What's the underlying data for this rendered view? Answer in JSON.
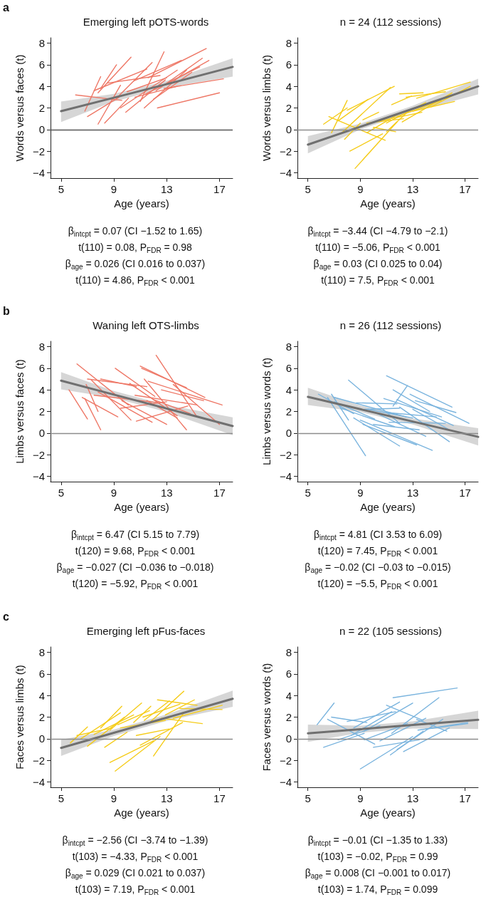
{
  "chart_data": [
    {
      "type": "line",
      "title": "Emerging left pOTS-words",
      "xlabel": "Age (years)",
      "ylabel": "Words versus faces (t)",
      "xlim": [
        4.2,
        18
      ],
      "xticks": [
        5,
        9,
        13,
        17
      ],
      "ylim": [
        -4.5,
        8.5
      ],
      "yticks": [
        -4,
        -2,
        0,
        2,
        4,
        6,
        8
      ],
      "ref_lines": [
        {
          "axis": "y",
          "value": 0,
          "color": "#555555"
        }
      ],
      "annotations": [
        "a",
        "β$_{intcpt}$ = 0.07 (CI −1.52 to 1.65)",
        "t(110) = 0.08, P$_{FDR}$ = 0.98",
        "β$_{age}$ = 0.026 (CI 0.016 to 0.037)",
        "t(110) = 4.86, P$_{FDR}$ < 0.001"
      ],
      "series": [
        {
          "color": "#ee7766",
          "x": [
            6.1,
            9.6
          ],
          "values": [
            3.2,
            2.7
          ]
        },
        {
          "color": "#ee7766",
          "x": [
            6.8,
            8.0
          ],
          "values": [
            1.7,
            4.9
          ]
        },
        {
          "color": "#ee7766",
          "x": [
            7.0,
            9.4
          ],
          "values": [
            1.2,
            3.0
          ]
        },
        {
          "color": "#ee7766",
          "x": [
            7.5,
            11.5
          ],
          "values": [
            3.6,
            5.6
          ]
        },
        {
          "color": "#ee7766",
          "x": [
            7.8,
            9.5
          ],
          "values": [
            0.5,
            4.1
          ]
        },
        {
          "color": "#ee7766",
          "x": [
            8.3,
            10.1
          ],
          "values": [
            0.6,
            2.9
          ]
        },
        {
          "color": "#ee7766",
          "x": [
            8.0,
            9.2
          ],
          "values": [
            3.8,
            6.0
          ]
        },
        {
          "color": "#ee7766",
          "x": [
            7.8,
            10.3
          ],
          "values": [
            3.4,
            6.7
          ]
        },
        {
          "color": "#ee7766",
          "x": [
            9.2,
            11.9
          ],
          "values": [
            2.9,
            6.2
          ]
        },
        {
          "color": "#ee7766",
          "x": [
            9.5,
            13.8
          ],
          "values": [
            2.0,
            5.5
          ]
        },
        {
          "color": "#ee7766",
          "x": [
            9.9,
            12.9
          ],
          "values": [
            1.6,
            4.6
          ]
        },
        {
          "color": "#ee7766",
          "x": [
            10.0,
            13.0
          ],
          "values": [
            3.5,
            4.8
          ]
        },
        {
          "color": "#ee7766",
          "x": [
            10.5,
            14.1
          ],
          "values": [
            4.5,
            6.4
          ]
        },
        {
          "color": "#ee7766",
          "x": [
            11.0,
            12.8
          ],
          "values": [
            2.6,
            7.2
          ]
        },
        {
          "color": "#ee7766",
          "x": [
            11.3,
            14.5
          ],
          "values": [
            2.0,
            5.5
          ]
        },
        {
          "color": "#ee7766",
          "x": [
            11.4,
            15.5
          ],
          "values": [
            3.3,
            5.8
          ]
        },
        {
          "color": "#ee7766",
          "x": [
            11.6,
            16.0
          ],
          "values": [
            4.8,
            7.5
          ]
        },
        {
          "color": "#ee7766",
          "x": [
            12.0,
            14.9
          ],
          "values": [
            2.8,
            5.3
          ]
        },
        {
          "color": "#ee7766",
          "x": [
            12.2,
            15.7
          ],
          "values": [
            3.6,
            6.6
          ]
        },
        {
          "color": "#ee7766",
          "x": [
            12.3,
            17.0
          ],
          "values": [
            2.0,
            3.4
          ]
        },
        {
          "color": "#ee7766",
          "x": [
            12.8,
            17.3
          ],
          "values": [
            3.8,
            4.7
          ]
        },
        {
          "color": "#ee7766",
          "x": [
            13.0,
            16.2
          ],
          "values": [
            4.2,
            6.4
          ]
        },
        {
          "color": "#ee7766",
          "x": [
            10.6,
            13.8
          ],
          "values": [
            3.0,
            4.0
          ]
        },
        {
          "color": "#ee7766",
          "x": [
            8.5,
            12.5
          ],
          "values": [
            4.3,
            5.0
          ]
        },
        {
          "color": "#707070",
          "x": [
            5,
            9,
            13,
            18
          ],
          "values": [
            1.7,
            2.95,
            4.2,
            5.8
          ],
          "lower": [
            0.7,
            2.6,
            3.9,
            4.9
          ],
          "upper": [
            2.6,
            3.3,
            4.5,
            6.6
          ]
        }
      ]
    },
    {
      "type": "line",
      "title": "n = 24 (112 sessions)",
      "xlabel": "Age (years)",
      "ylabel": "Words versus limbs (t)",
      "xlim": [
        4.2,
        18
      ],
      "xticks": [
        5,
        9,
        13,
        17
      ],
      "ylim": [
        -4.5,
        8.5
      ],
      "yticks": [
        -4,
        -2,
        0,
        2,
        4,
        6,
        8
      ],
      "ref_lines": [
        {
          "axis": "y",
          "value": 0,
          "color": "#8c8c8c"
        }
      ],
      "annotations": [
        "β$_{intcpt}$ = −3.44 (CI −4.79 to −2.1)",
        "t(110) = −5.06, P$_{FDR}$ < 0.001",
        "β$_{age}$ = 0.03 (CI 0.025 to 0.04)",
        "t(110) = 7.5, P$_{FDR}$ < 0.001"
      ],
      "series": [
        {
          "color": "#f5cc1a",
          "x": [
            6.2,
            8.0
          ],
          "values": [
            0.5,
            2.0
          ]
        },
        {
          "color": "#f5cc1a",
          "x": [
            6.6,
            10.9
          ],
          "values": [
            1.2,
            -1.0
          ]
        },
        {
          "color": "#f5cc1a",
          "x": [
            6.8,
            8.0
          ],
          "values": [
            -0.3,
            2.7
          ]
        },
        {
          "color": "#f5cc1a",
          "x": [
            7.3,
            9.6
          ],
          "values": [
            0.8,
            2.8
          ]
        },
        {
          "color": "#f5cc1a",
          "x": [
            7.5,
            11.3
          ],
          "values": [
            -0.4,
            3.9
          ]
        },
        {
          "color": "#f5cc1a",
          "x": [
            7.8,
            9.0
          ],
          "values": [
            -0.9,
            0.6
          ]
        },
        {
          "color": "#f5cc1a",
          "x": [
            8.0,
            11.6
          ],
          "values": [
            1.8,
            4.0
          ]
        },
        {
          "color": "#f5cc1a",
          "x": [
            8.2,
            10.7
          ],
          "values": [
            -2.0,
            -0.4
          ]
        },
        {
          "color": "#f5cc1a",
          "x": [
            8.6,
            11.8
          ],
          "values": [
            -3.6,
            0.7
          ]
        },
        {
          "color": "#f5cc1a",
          "x": [
            9.2,
            10.4
          ],
          "values": [
            0.9,
            1.6
          ]
        },
        {
          "color": "#f5cc1a",
          "x": [
            9.5,
            12.0
          ],
          "values": [
            -0.3,
            1.5
          ]
        },
        {
          "color": "#f5cc1a",
          "x": [
            9.5,
            12.3
          ],
          "values": [
            0.6,
            1.0
          ]
        },
        {
          "color": "#f5cc1a",
          "x": [
            10.0,
            11.7
          ],
          "values": [
            0.2,
            -0.2
          ]
        },
        {
          "color": "#f5cc1a",
          "x": [
            10.5,
            13.7
          ],
          "values": [
            0.8,
            1.6
          ]
        },
        {
          "color": "#f5cc1a",
          "x": [
            11.0,
            12.5
          ],
          "values": [
            -0.2,
            1.5
          ]
        },
        {
          "color": "#f5cc1a",
          "x": [
            11.0,
            14.0
          ],
          "values": [
            0.6,
            2.5
          ]
        },
        {
          "color": "#f5cc1a",
          "x": [
            11.4,
            12.9
          ],
          "values": [
            2.3,
            3.1
          ]
        },
        {
          "color": "#f5cc1a",
          "x": [
            11.8,
            15.2
          ],
          "values": [
            1.2,
            2.7
          ]
        },
        {
          "color": "#f5cc1a",
          "x": [
            12.0,
            13.8
          ],
          "values": [
            3.3,
            3.4
          ]
        },
        {
          "color": "#f5cc1a",
          "x": [
            12.5,
            15.5
          ],
          "values": [
            3.0,
            3.5
          ]
        },
        {
          "color": "#f5cc1a",
          "x": [
            12.2,
            16.0
          ],
          "values": [
            0.7,
            3.4
          ]
        },
        {
          "color": "#f5cc1a",
          "x": [
            13.0,
            16.2
          ],
          "values": [
            1.7,
            2.6
          ]
        },
        {
          "color": "#f5cc1a",
          "x": [
            13.3,
            17.4
          ],
          "values": [
            2.9,
            4.4
          ]
        },
        {
          "color": "#f5cc1a",
          "x": [
            14.4,
            17.4
          ],
          "values": [
            2.1,
            4.0
          ]
        },
        {
          "color": "#707070",
          "x": [
            5,
            9,
            13,
            18
          ],
          "values": [
            -1.4,
            0.26,
            1.92,
            4.0
          ],
          "lower": [
            -2.2,
            0.0,
            1.65,
            3.25
          ],
          "upper": [
            -0.6,
            0.55,
            2.2,
            4.7
          ]
        }
      ]
    },
    {
      "type": "line",
      "title": "Waning left OTS-limbs",
      "xlabel": "Age (years)",
      "ylabel": "Limbs versus faces (t)",
      "xlim": [
        4.2,
        18
      ],
      "xticks": [
        5,
        9,
        13,
        17
      ],
      "ylim": [
        -4.5,
        8.5
      ],
      "yticks": [
        -4,
        -2,
        0,
        2,
        4,
        6,
        8
      ],
      "ref_lines": [
        {
          "axis": "y",
          "value": 0,
          "color": "#8c8c8c"
        }
      ],
      "annotations": [
        "b",
        "β$_{intcpt}$ = 6.47 (CI 5.15 to 7.79)",
        "t(120) = 9.68, P$_{FDR}$ < 0.001",
        "β$_{age}$ = −0.027 (CI −0.036 to −0.018)",
        "t(120) = −5.92, P$_{FDR}$ < 0.001"
      ],
      "series": [
        {
          "color": "#ee7766",
          "x": [
            5.6,
            7.0
          ],
          "values": [
            4.0,
            1.3
          ]
        },
        {
          "color": "#ee7766",
          "x": [
            6.2,
            10.1
          ],
          "values": [
            6.4,
            2.6
          ]
        },
        {
          "color": "#ee7766",
          "x": [
            6.6,
            9.3
          ],
          "values": [
            3.3,
            1.5
          ]
        },
        {
          "color": "#ee7766",
          "x": [
            6.8,
            8.0
          ],
          "values": [
            3.2,
            0.3
          ]
        },
        {
          "color": "#ee7766",
          "x": [
            6.9,
            7.8
          ],
          "values": [
            4.5,
            2.0
          ]
        },
        {
          "color": "#ee7766",
          "x": [
            7.0,
            11.5
          ],
          "values": [
            5.0,
            4.3
          ]
        },
        {
          "color": "#ee7766",
          "x": [
            7.3,
            10.3
          ],
          "values": [
            4.9,
            1.2
          ]
        },
        {
          "color": "#ee7766",
          "x": [
            7.5,
            12.5
          ],
          "values": [
            3.5,
            2.8
          ]
        },
        {
          "color": "#ee7766",
          "x": [
            7.8,
            11.9
          ],
          "values": [
            3.8,
            1.0
          ]
        },
        {
          "color": "#ee7766",
          "x": [
            9.1,
            12.1
          ],
          "values": [
            6.0,
            3.4
          ]
        },
        {
          "color": "#ee7766",
          "x": [
            9.6,
            13.0
          ],
          "values": [
            3.0,
            0.8
          ]
        },
        {
          "color": "#ee7766",
          "x": [
            10.2,
            13.8
          ],
          "values": [
            4.6,
            1.6
          ]
        },
        {
          "color": "#ee7766",
          "x": [
            10.6,
            15.3
          ],
          "values": [
            3.5,
            2.6
          ]
        },
        {
          "color": "#ee7766",
          "x": [
            10.7,
            14.6
          ],
          "values": [
            1.1,
            2.5
          ]
        },
        {
          "color": "#ee7766",
          "x": [
            11.0,
            15.9
          ],
          "values": [
            6.2,
            3.3
          ]
        },
        {
          "color": "#ee7766",
          "x": [
            11.1,
            14.5
          ],
          "values": [
            6.0,
            4.2
          ]
        },
        {
          "color": "#ee7766",
          "x": [
            11.5,
            13.8
          ],
          "values": [
            3.0,
            1.4
          ]
        },
        {
          "color": "#ee7766",
          "x": [
            11.6,
            17.2
          ],
          "values": [
            4.8,
            2.6
          ]
        },
        {
          "color": "#ee7766",
          "x": [
            11.3,
            14.5
          ],
          "values": [
            5.0,
            0.3
          ]
        },
        {
          "color": "#ee7766",
          "x": [
            12.0,
            14.8
          ],
          "values": [
            3.1,
            1.8
          ]
        },
        {
          "color": "#ee7766",
          "x": [
            12.6,
            15.8
          ],
          "values": [
            4.0,
            3.0
          ]
        },
        {
          "color": "#ee7766",
          "x": [
            12.2,
            15.3
          ],
          "values": [
            7.2,
            1.5
          ]
        },
        {
          "color": "#ee7766",
          "x": [
            13.5,
            17.0
          ],
          "values": [
            4.5,
            0.8
          ]
        },
        {
          "color": "#ee7766",
          "x": [
            9.5,
            13.0
          ],
          "values": [
            2.3,
            2.9
          ]
        },
        {
          "color": "#ee7766",
          "x": [
            8.0,
            10.7
          ],
          "values": [
            5.0,
            4.3
          ]
        },
        {
          "color": "#707070",
          "x": [
            5,
            9,
            13,
            18
          ],
          "values": [
            4.85,
            3.56,
            2.27,
            0.65
          ],
          "lower": [
            4.05,
            3.25,
            1.95,
            -0.2
          ],
          "upper": [
            5.65,
            3.9,
            2.6,
            1.45
          ]
        }
      ]
    },
    {
      "type": "line",
      "title": "n = 26 (112 sessions)",
      "xlabel": "Age (years)",
      "ylabel": "Limbs versus words (t)",
      "xlim": [
        4.2,
        18
      ],
      "xticks": [
        5,
        9,
        13,
        17
      ],
      "ylim": [
        -4.5,
        8.5
      ],
      "yticks": [
        -4,
        -2,
        0,
        2,
        4,
        6,
        8
      ],
      "ref_lines": [
        {
          "axis": "y",
          "value": 0,
          "color": "#8c8c8c"
        }
      ],
      "annotations": [
        "β$_{intcpt}$ = 4.81 (CI 3.53 to 6.09)",
        "t(120) = 7.45, P$_{FDR}$ < 0.001",
        "β$_{age}$ = −0.02 (CI −0.03 to −0.015)",
        "t(120) = −5.5, P$_{FDR}$ < 0.001"
      ],
      "series": [
        {
          "color": "#7ab4de",
          "x": [
            5.8,
            8.5
          ],
          "values": [
            3.6,
            1.8
          ]
        },
        {
          "color": "#7ab4de",
          "x": [
            6.5,
            9.4
          ],
          "values": [
            3.3,
            -2.1
          ]
        },
        {
          "color": "#7ab4de",
          "x": [
            6.8,
            8.1
          ],
          "values": [
            3.6,
            1.2
          ]
        },
        {
          "color": "#7ab4de",
          "x": [
            7.0,
            10.1
          ],
          "values": [
            2.9,
            1.3
          ]
        },
        {
          "color": "#7ab4de",
          "x": [
            7.0,
            12.5
          ],
          "values": [
            3.3,
            1.5
          ]
        },
        {
          "color": "#7ab4de",
          "x": [
            7.5,
            11.6
          ],
          "values": [
            2.3,
            0.6
          ]
        },
        {
          "color": "#7ab4de",
          "x": [
            8.1,
            12.0
          ],
          "values": [
            4.9,
            0.9
          ]
        },
        {
          "color": "#7ab4de",
          "x": [
            8.5,
            12.0
          ],
          "values": [
            1.4,
            -1.2
          ]
        },
        {
          "color": "#7ab4de",
          "x": [
            8.7,
            11.8
          ],
          "values": [
            2.8,
            2.7
          ]
        },
        {
          "color": "#7ab4de",
          "x": [
            9.0,
            14.5
          ],
          "values": [
            1.2,
            -1.6
          ]
        },
        {
          "color": "#7ab4de",
          "x": [
            9.2,
            13.3
          ],
          "values": [
            0.8,
            -1.1
          ]
        },
        {
          "color": "#7ab4de",
          "x": [
            9.6,
            13.0
          ],
          "values": [
            2.2,
            1.4
          ]
        },
        {
          "color": "#7ab4de",
          "x": [
            10.8,
            15.2
          ],
          "values": [
            3.2,
            1.5
          ]
        },
        {
          "color": "#7ab4de",
          "x": [
            11.0,
            14.8
          ],
          "values": [
            1.9,
            1.5
          ]
        },
        {
          "color": "#7ab4de",
          "x": [
            11.2,
            15.5
          ],
          "values": [
            1.0,
            0.9
          ]
        },
        {
          "color": "#7ab4de",
          "x": [
            11.5,
            12.6
          ],
          "values": [
            2.5,
            4.4
          ]
        },
        {
          "color": "#7ab4de",
          "x": [
            11.5,
            14.3
          ],
          "values": [
            4.0,
            2.0
          ]
        },
        {
          "color": "#7ab4de",
          "x": [
            11.8,
            16.1
          ],
          "values": [
            3.1,
            0.7
          ]
        },
        {
          "color": "#7ab4de",
          "x": [
            11.0,
            16.0
          ],
          "values": [
            5.3,
            2.4
          ]
        },
        {
          "color": "#7ab4de",
          "x": [
            12.8,
            17.3
          ],
          "values": [
            3.6,
            0.9
          ]
        },
        {
          "color": "#7ab4de",
          "x": [
            13.2,
            16.3
          ],
          "values": [
            3.0,
            1.9
          ]
        },
        {
          "color": "#7ab4de",
          "x": [
            12.0,
            15.8
          ],
          "values": [
            2.4,
            -0.8
          ]
        },
        {
          "color": "#7ab4de",
          "x": [
            13.0,
            15.8
          ],
          "values": [
            2.2,
            0.3
          ]
        },
        {
          "color": "#7ab4de",
          "x": [
            10.0,
            13.5
          ],
          "values": [
            0.8,
            0.3
          ]
        },
        {
          "color": "#7ab4de",
          "x": [
            10.3,
            14.0
          ],
          "values": [
            1.8,
            -0.3
          ]
        },
        {
          "color": "#7ab4de",
          "x": [
            9.3,
            12.0
          ],
          "values": [
            2.2,
            2.3
          ]
        },
        {
          "color": "#707070",
          "x": [
            5,
            9,
            13,
            18
          ],
          "values": [
            3.35,
            2.21,
            1.07,
            -0.35
          ],
          "lower": [
            2.6,
            1.95,
            0.8,
            -1.15
          ],
          "upper": [
            4.2,
            2.55,
            1.35,
            0.45
          ]
        }
      ]
    },
    {
      "type": "line",
      "title": "Emerging left pFus-faces",
      "xlabel": "Age (years)",
      "ylabel": "Faces versus limbs (t)",
      "xlim": [
        4.2,
        18
      ],
      "xticks": [
        5,
        9,
        13,
        17
      ],
      "ylim": [
        -4.5,
        8.5
      ],
      "yticks": [
        -4,
        -2,
        0,
        2,
        4,
        6,
        8
      ],
      "ref_lines": [
        {
          "axis": "y",
          "value": 0,
          "color": "#8c8c8c"
        }
      ],
      "annotations": [
        "c",
        "β$_{intcpt}$ = −2.56 (CI −3.74 to −1.39)",
        "t(103) = −4.33, P$_{FDR}$ < 0.001",
        "β$_{age}$ = 0.029 (CI 0.021 to 0.037)",
        "t(103) = 7.19, P$_{FDR}$ < 0.001"
      ],
      "series": [
        {
          "color": "#f5cc1a",
          "x": [
            5.7,
            7.0
          ],
          "values": [
            -0.4,
            1.1
          ]
        },
        {
          "color": "#f5cc1a",
          "x": [
            6.2,
            8.9
          ],
          "values": [
            0.3,
            1.0
          ]
        },
        {
          "color": "#f5cc1a",
          "x": [
            6.5,
            9.5
          ],
          "values": [
            0.0,
            2.4
          ]
        },
        {
          "color": "#f5cc1a",
          "x": [
            7.0,
            9.8
          ],
          "values": [
            -0.7,
            2.0
          ]
        },
        {
          "color": "#f5cc1a",
          "x": [
            7.5,
            10.5
          ],
          "values": [
            0.4,
            2.2
          ]
        },
        {
          "color": "#f5cc1a",
          "x": [
            8.0,
            9.6
          ],
          "values": [
            1.0,
            3.0
          ]
        },
        {
          "color": "#f5cc1a",
          "x": [
            8.3,
            10.0
          ],
          "values": [
            -0.8,
            0.6
          ]
        },
        {
          "color": "#f5cc1a",
          "x": [
            8.7,
            11.1
          ],
          "values": [
            0.8,
            3.3
          ]
        },
        {
          "color": "#f5cc1a",
          "x": [
            8.7,
            12.0
          ],
          "values": [
            -2.2,
            -0.2
          ]
        },
        {
          "color": "#f5cc1a",
          "x": [
            9.1,
            12.5
          ],
          "values": [
            -3.0,
            0.2
          ]
        },
        {
          "color": "#f5cc1a",
          "x": [
            9.3,
            11.7
          ],
          "values": [
            1.3,
            2.6
          ]
        },
        {
          "color": "#f5cc1a",
          "x": [
            9.5,
            12.9
          ],
          "values": [
            1.0,
            1.7
          ]
        },
        {
          "color": "#f5cc1a",
          "x": [
            10.5,
            11.8
          ],
          "values": [
            1.5,
            3.0
          ]
        },
        {
          "color": "#f5cc1a",
          "x": [
            10.7,
            13.2
          ],
          "values": [
            0.3,
            0.9
          ]
        },
        {
          "color": "#f5cc1a",
          "x": [
            11.0,
            14.2
          ],
          "values": [
            -0.6,
            1.5
          ]
        },
        {
          "color": "#f5cc1a",
          "x": [
            11.2,
            14.0
          ],
          "values": [
            2.0,
            3.2
          ]
        },
        {
          "color": "#f5cc1a",
          "x": [
            11.3,
            13.2
          ],
          "values": [
            1.7,
            3.5
          ]
        },
        {
          "color": "#f5cc1a",
          "x": [
            11.8,
            14.3
          ],
          "values": [
            1.6,
            4.4
          ]
        },
        {
          "color": "#f5cc1a",
          "x": [
            12.0,
            14.3
          ],
          "values": [
            -1.6,
            2.4
          ]
        },
        {
          "color": "#f5cc1a",
          "x": [
            12.3,
            15.3
          ],
          "values": [
            3.6,
            3.1
          ]
        },
        {
          "color": "#f5cc1a",
          "x": [
            12.6,
            15.7
          ],
          "values": [
            1.9,
            1.4
          ]
        },
        {
          "color": "#f5cc1a",
          "x": [
            12.9,
            15.1
          ],
          "values": [
            2.2,
            3.6
          ]
        },
        {
          "color": "#f5cc1a",
          "x": [
            13.5,
            17.2
          ],
          "values": [
            1.9,
            3.1
          ]
        },
        {
          "color": "#f5cc1a",
          "x": [
            14.0,
            17.2
          ],
          "values": [
            2.8,
            2.7
          ]
        },
        {
          "color": "#707070",
          "x": [
            5,
            9,
            13,
            18
          ],
          "values": [
            -0.85,
            0.55,
            1.95,
            3.7
          ],
          "lower": [
            -1.6,
            0.25,
            1.65,
            2.95
          ],
          "upper": [
            -0.1,
            0.85,
            2.25,
            4.45
          ]
        }
      ]
    },
    {
      "type": "line",
      "title": "n = 22 (105 sessions)",
      "xlabel": "Age (years)",
      "ylabel": "Faces versus words (t)",
      "xlim": [
        4.2,
        18
      ],
      "xticks": [
        5,
        9,
        13,
        17
      ],
      "ylim": [
        -4.5,
        8.5
      ],
      "yticks": [
        -4,
        -2,
        0,
        2,
        4,
        6,
        8
      ],
      "ref_lines": [
        {
          "axis": "y",
          "value": 0,
          "color": "#8c8c8c"
        }
      ],
      "annotations": [
        "β$_{intcpt}$ = −0.01 (CI −1.35 to 1.33)",
        "t(103) = −0.02, P$_{FDR}$ = 0.99",
        "β$_{age}$ = 0.008 (CI −0.001 to 0.017)",
        "t(103) = 1.74, P$_{FDR}$ = 0.099"
      ],
      "series": [
        {
          "color": "#7ab4de",
          "x": [
            5.7,
            7.0
          ],
          "values": [
            1.3,
            3.3
          ]
        },
        {
          "color": "#7ab4de",
          "x": [
            6.2,
            9.3
          ],
          "values": [
            -0.8,
            0.5
          ]
        },
        {
          "color": "#7ab4de",
          "x": [
            6.8,
            9.5
          ],
          "values": [
            2.0,
            1.5
          ]
        },
        {
          "color": "#7ab4de",
          "x": [
            6.5,
            10.1
          ],
          "values": [
            1.8,
            -0.5
          ]
        },
        {
          "color": "#7ab4de",
          "x": [
            7.3,
            10.5
          ],
          "values": [
            -0.1,
            1.2
          ]
        },
        {
          "color": "#7ab4de",
          "x": [
            8.0,
            11.7
          ],
          "values": [
            1.6,
            2.5
          ]
        },
        {
          "color": "#7ab4de",
          "x": [
            8.3,
            11.4
          ],
          "values": [
            0.3,
            2.5
          ]
        },
        {
          "color": "#7ab4de",
          "x": [
            8.5,
            12.0
          ],
          "values": [
            1.0,
            3.4
          ]
        },
        {
          "color": "#7ab4de",
          "x": [
            9.0,
            13.0
          ],
          "values": [
            -2.8,
            0.2
          ]
        },
        {
          "color": "#7ab4de",
          "x": [
            9.3,
            13.0
          ],
          "values": [
            0.7,
            3.3
          ]
        },
        {
          "color": "#7ab4de",
          "x": [
            9.3,
            12.6
          ],
          "values": [
            -0.1,
            1.4
          ]
        },
        {
          "color": "#7ab4de",
          "x": [
            10.0,
            13.5
          ],
          "values": [
            -0.8,
            -0.1
          ]
        },
        {
          "color": "#7ab4de",
          "x": [
            10.5,
            14.0
          ],
          "values": [
            -0.2,
            1.9
          ]
        },
        {
          "color": "#7ab4de",
          "x": [
            11.0,
            13.8
          ],
          "values": [
            3.1,
            1.7
          ]
        },
        {
          "color": "#7ab4de",
          "x": [
            11.3,
            13.8
          ],
          "values": [
            -1.5,
            0.7
          ]
        },
        {
          "color": "#7ab4de",
          "x": [
            11.4,
            15.0
          ],
          "values": [
            0.5,
            3.8
          ]
        },
        {
          "color": "#7ab4de",
          "x": [
            11.5,
            16.4
          ],
          "values": [
            3.8,
            4.7
          ]
        },
        {
          "color": "#7ab4de",
          "x": [
            11.8,
            15.3
          ],
          "values": [
            -1.0,
            1.8
          ]
        },
        {
          "color": "#7ab4de",
          "x": [
            12.3,
            15.8
          ],
          "values": [
            -1.2,
            1.0
          ]
        },
        {
          "color": "#7ab4de",
          "x": [
            13.4,
            17.2
          ],
          "values": [
            0.8,
            1.4
          ]
        },
        {
          "color": "#7ab4de",
          "x": [
            13.3,
            15.6
          ],
          "values": [
            1.8,
            0.7
          ]
        },
        {
          "color": "#7ab4de",
          "x": [
            14.0,
            17.2
          ],
          "values": [
            0.9,
            1.5
          ]
        },
        {
          "color": "#707070",
          "x": [
            5,
            9,
            13,
            18
          ],
          "values": [
            0.5,
            0.88,
            1.27,
            1.75
          ],
          "lower": [
            -0.3,
            0.55,
            0.95,
            0.9
          ],
          "upper": [
            1.3,
            1.2,
            1.6,
            2.6
          ]
        }
      ]
    }
  ]
}
